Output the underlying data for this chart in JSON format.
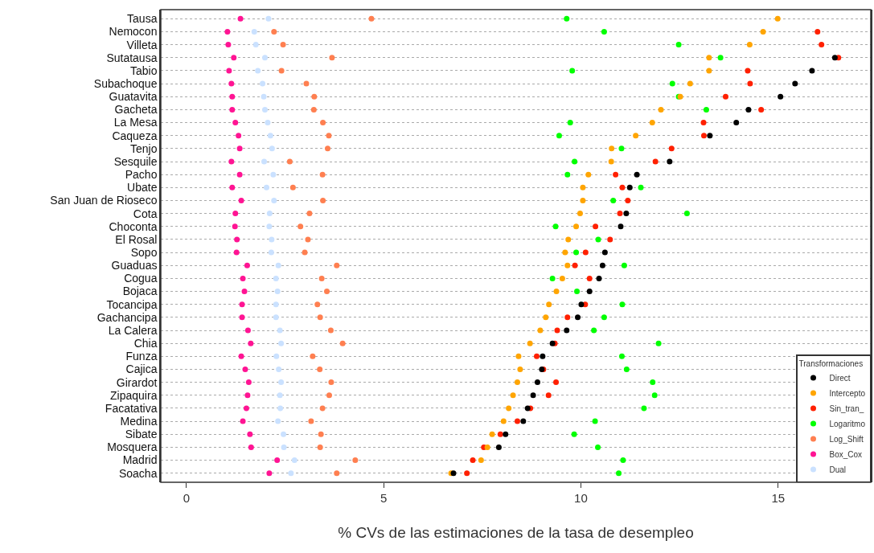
{
  "chart_data": {
    "type": "scatter",
    "xlabel": "% CVs de las estimaciones de la tasa de desempleo",
    "legend_title": "Transformaciones",
    "categories": [
      "Tausa",
      "Nemocon",
      "Villeta",
      "Sutatausa",
      "Tabio",
      "Subachoque",
      "Guatavita",
      "Gacheta",
      "La Mesa",
      "Caqueza",
      "Tenjo",
      "Sesquile",
      "Pacho",
      "Ubate",
      "San Juan de Rioseco",
      "Cota",
      "Choconta",
      "El Rosal",
      "Sopo",
      "Guaduas",
      "Cogua",
      "Bojaca",
      "Tocancipa",
      "Gachancipa",
      "La Calera",
      "Chia",
      "Funza",
      "Cajica",
      "Girardot",
      "Zipaquira",
      "Facatativa",
      "Medina",
      "Sibate",
      "Mosquera",
      "Madrid",
      "Soacha"
    ],
    "orientation": "horizontal",
    "xlim": [
      -0.65,
      17.35
    ],
    "xticks": [
      0,
      5,
      10,
      15
    ],
    "grid": "y",
    "legend": "bottom right",
    "marker": "circle",
    "series": [
      {
        "name": "Direct",
        "color": "#000000",
        "values": [
          null,
          null,
          null,
          16.44,
          15.86,
          15.43,
          15.06,
          14.25,
          13.94,
          13.27,
          null,
          12.25,
          11.42,
          11.24,
          null,
          11.15,
          11.01,
          null,
          10.61,
          10.55,
          10.46,
          10.22,
          10.01,
          9.92,
          9.64,
          9.28,
          9.03,
          9.01,
          8.9,
          8.79,
          8.65,
          8.54,
          8.09,
          7.92,
          null,
          6.77
        ]
      },
      {
        "name": "Intercepto",
        "color": "#ffa500",
        "values": [
          14.99,
          14.62,
          14.28,
          13.25,
          13.25,
          12.77,
          12.52,
          12.03,
          11.81,
          11.39,
          10.78,
          10.77,
          10.19,
          10.05,
          10.05,
          9.98,
          9.88,
          9.68,
          9.6,
          9.66,
          9.53,
          9.38,
          9.19,
          9.11,
          8.97,
          8.71,
          8.42,
          8.46,
          8.39,
          8.28,
          8.17,
          8.04,
          7.75,
          7.63,
          7.47,
          6.71
        ]
      },
      {
        "name": "Sin_tran_",
        "color": "#ff2000",
        "values": [
          null,
          16.0,
          16.1,
          16.53,
          14.23,
          14.29,
          13.67,
          14.57,
          13.11,
          13.12,
          12.3,
          11.89,
          10.88,
          11.05,
          11.19,
          10.99,
          10.37,
          10.74,
          10.12,
          9.85,
          10.22,
          null,
          10.11,
          9.66,
          9.4,
          9.34,
          8.88,
          9.05,
          9.37,
          9.18,
          8.72,
          8.39,
          7.96,
          7.54,
          7.26,
          7.11
        ]
      },
      {
        "name": "Logaritmo",
        "color": "#00ff00",
        "values": [
          9.64,
          10.59,
          12.48,
          13.54,
          9.78,
          12.32,
          12.48,
          13.18,
          9.73,
          9.45,
          11.03,
          9.84,
          9.66,
          11.52,
          10.82,
          12.69,
          9.36,
          10.44,
          9.88,
          11.1,
          9.28,
          9.9,
          11.05,
          10.59,
          10.33,
          11.97,
          11.04,
          11.16,
          11.82,
          11.87,
          11.6,
          10.36,
          9.83,
          10.43,
          11.07,
          10.96
        ]
      },
      {
        "name": "Log_Shift",
        "color": "#ff7f50",
        "values": [
          4.69,
          2.22,
          2.45,
          3.69,
          2.41,
          3.04,
          3.24,
          3.23,
          3.46,
          3.61,
          3.58,
          2.62,
          3.45,
          2.7,
          3.46,
          3.12,
          2.89,
          3.08,
          3.0,
          3.81,
          3.43,
          3.56,
          3.32,
          3.39,
          3.66,
          3.96,
          3.2,
          3.38,
          3.67,
          3.62,
          3.45,
          3.16,
          3.41,
          3.39,
          4.28,
          3.81
        ]
      },
      {
        "name": "Box_Cox",
        "color": "#ff1493",
        "values": [
          1.37,
          1.04,
          1.06,
          1.2,
          1.08,
          1.14,
          1.16,
          1.16,
          1.24,
          1.32,
          1.35,
          1.14,
          1.35,
          1.16,
          1.39,
          1.24,
          1.23,
          1.28,
          1.27,
          1.54,
          1.43,
          1.47,
          1.41,
          1.41,
          1.56,
          1.63,
          1.39,
          1.49,
          1.58,
          1.55,
          1.52,
          1.43,
          1.61,
          1.64,
          2.3,
          2.1
        ]
      },
      {
        "name": "Dual",
        "color": "#cae1ff",
        "values": [
          2.08,
          1.72,
          1.76,
          1.99,
          1.81,
          1.93,
          1.96,
          1.99,
          2.06,
          2.13,
          2.17,
          1.97,
          2.2,
          2.03,
          2.22,
          2.11,
          2.1,
          2.16,
          2.15,
          2.33,
          2.27,
          2.31,
          2.27,
          2.27,
          2.37,
          2.4,
          2.28,
          2.34,
          2.4,
          2.37,
          2.38,
          2.32,
          2.46,
          2.47,
          2.74,
          2.65
        ]
      }
    ]
  }
}
